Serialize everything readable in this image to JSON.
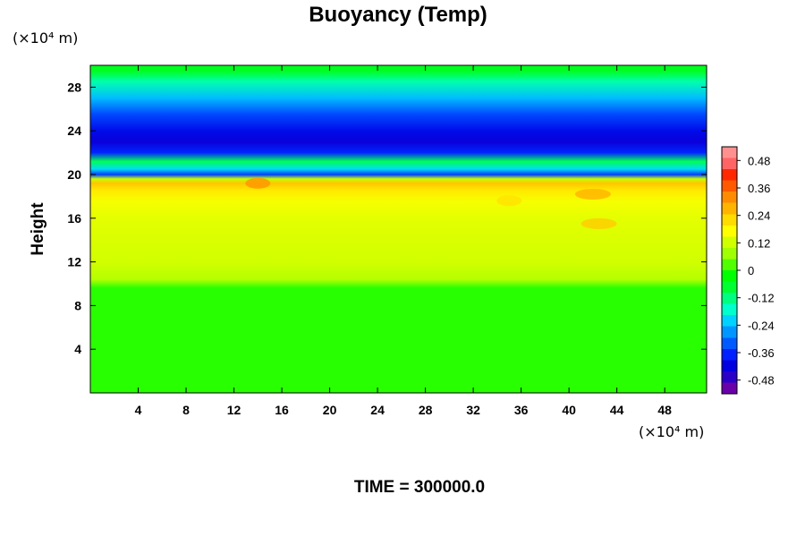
{
  "chart_data": {
    "type": "heatmap",
    "title": "Buoyancy (Temp)",
    "ylabel": "Height",
    "xlabel": "",
    "x_unit": "(×10⁴ m)",
    "y_unit": "(×10⁴ m)",
    "xlim": [
      0,
      51.5
    ],
    "ylim": [
      0,
      30
    ],
    "x_ticks": [
      4,
      8,
      12,
      16,
      20,
      24,
      28,
      32,
      36,
      40,
      44,
      48
    ],
    "y_ticks": [
      4,
      8,
      12,
      16,
      20,
      24,
      28
    ],
    "colorbar": {
      "range": [
        -0.54,
        0.54
      ],
      "ticks": [
        0.48,
        0.36,
        0.24,
        0.12,
        0,
        -0.12,
        -0.24,
        -0.36,
        -0.48
      ],
      "tick_labels": [
        "0.48",
        "0.36",
        "0.24",
        "0.12",
        "0",
        "-0.12",
        "-0.24",
        "-0.36",
        "-0.48"
      ],
      "colors": [
        "#6a00aa",
        "#2a00c8",
        "#0000e0",
        "#0020ff",
        "#005aff",
        "#0096ff",
        "#00d2ff",
        "#00ffcc",
        "#00ff80",
        "#00ff30",
        "#00ff00",
        "#50ff00",
        "#a0ff00",
        "#d0ff00",
        "#ffff00",
        "#ffdc00",
        "#ffb400",
        "#ff8c00",
        "#ff5a00",
        "#ff2800",
        "#ff6464",
        "#ff9090"
      ]
    },
    "vertical_profile": {
      "height": [
        0,
        9.6,
        10.4,
        12,
        14,
        16,
        17.5,
        18.5,
        19.2,
        19.6,
        20.0,
        20.5,
        21.2,
        22.0,
        23.0,
        24.0,
        25.5,
        27.0,
        28.5,
        29.5,
        30
      ],
      "value": [
        0.0,
        0.0,
        0.1,
        0.13,
        0.14,
        0.15,
        0.17,
        0.21,
        0.26,
        0.12,
        -0.36,
        -0.22,
        -0.1,
        -0.38,
        -0.45,
        -0.42,
        -0.35,
        -0.25,
        -0.16,
        -0.06,
        -0.06
      ]
    },
    "features": [
      {
        "x": 35,
        "y": 17.6,
        "value": 0.22
      },
      {
        "x": 42.5,
        "y": 15.5,
        "value": 0.25
      },
      {
        "x": 14,
        "y": 19.2,
        "value": 0.32
      },
      {
        "x": 42,
        "y": 18.2,
        "value": 0.28
      }
    ]
  },
  "time_label": "TIME = 300000.0"
}
